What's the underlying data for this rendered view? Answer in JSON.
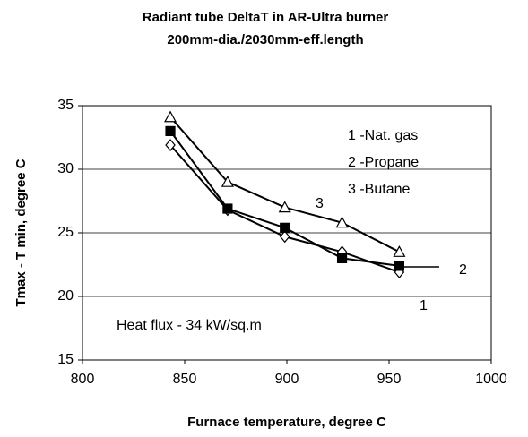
{
  "chart_data": {
    "type": "line",
    "title": "Radiant tube DeltaT in AR-Ultra burner",
    "subtitle": "200mm-dia./2030mm-eff.length",
    "x_label": "Furnace temperature, degree C",
    "y_label": "Tmax - T min, degree C",
    "x": [
      843,
      871,
      899,
      927,
      955
    ],
    "series": [
      {
        "name": "1 -Nat. gas",
        "color": "#000000",
        "marker": "diamond",
        "values": [
          31.9,
          26.8,
          24.7,
          23.5,
          21.9
        ]
      },
      {
        "name": "2 -Propane",
        "color": "#000000",
        "marker": "square",
        "values": [
          33,
          26.9,
          25.4,
          23,
          22.4
        ]
      },
      {
        "name": "3 -Butane",
        "color": "#000000",
        "marker": "triangle",
        "values": [
          34.1,
          29,
          27,
          25.8,
          23.5
        ]
      }
    ],
    "annotations": [
      "1",
      "2",
      "3",
      "Heat flux - 34 kW/sq.m"
    ],
    "xlim": [
      800,
      1000
    ],
    "xticks": [
      800,
      850,
      900,
      950,
      1000
    ],
    "ylim": [
      15,
      35
    ],
    "yticks": [
      15,
      20,
      25,
      30,
      35
    ],
    "grid": true
  }
}
